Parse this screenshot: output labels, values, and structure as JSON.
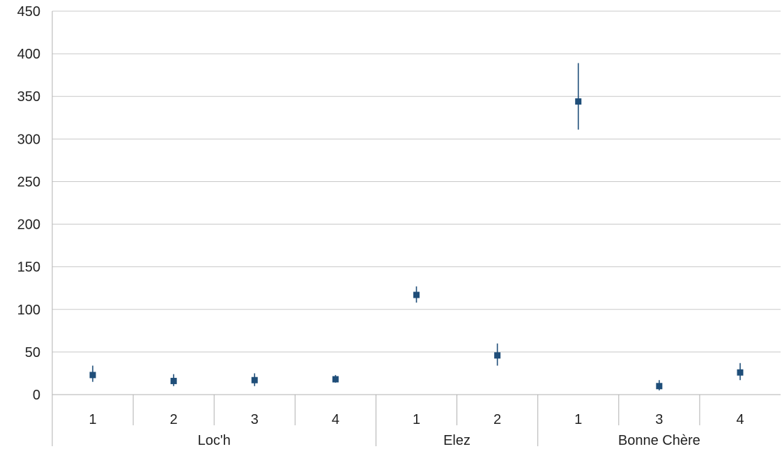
{
  "chart_data": {
    "type": "scatter",
    "title": "",
    "xlabel": "",
    "ylabel": "",
    "ylim": [
      0,
      450
    ],
    "y_ticks": [
      0,
      50,
      100,
      150,
      200,
      250,
      300,
      350,
      400,
      450
    ],
    "grid": true,
    "legend": "none",
    "marker_color": "#1f4e79",
    "groups": [
      {
        "label": "Loc'h",
        "categories": [
          "1",
          "2",
          "3",
          "4"
        ]
      },
      {
        "label": "Elez",
        "categories": [
          "1",
          "2"
        ]
      },
      {
        "label": "Bonne Chère",
        "categories": [
          "1",
          "3",
          "4"
        ]
      }
    ],
    "points": [
      {
        "group": "Loc'h",
        "category": "1",
        "value": 23,
        "error_low": 15,
        "error_high": 34
      },
      {
        "group": "Loc'h",
        "category": "2",
        "value": 16,
        "error_low": 10,
        "error_high": 24
      },
      {
        "group": "Loc'h",
        "category": "3",
        "value": 17,
        "error_low": 10,
        "error_high": 25
      },
      {
        "group": "Loc'h",
        "category": "4",
        "value": 18,
        "error_low": 14,
        "error_high": 23
      },
      {
        "group": "Elez",
        "category": "1",
        "value": 117,
        "error_low": 108,
        "error_high": 127
      },
      {
        "group": "Elez",
        "category": "2",
        "value": 46,
        "error_low": 34,
        "error_high": 60
      },
      {
        "group": "Bonne Chère",
        "category": "1",
        "value": 344,
        "error_low": 311,
        "error_high": 389
      },
      {
        "group": "Bonne Chère",
        "category": "3",
        "value": 10,
        "error_low": 5,
        "error_high": 17
      },
      {
        "group": "Bonne Chère",
        "category": "4",
        "value": 26,
        "error_low": 17,
        "error_high": 37
      }
    ]
  }
}
